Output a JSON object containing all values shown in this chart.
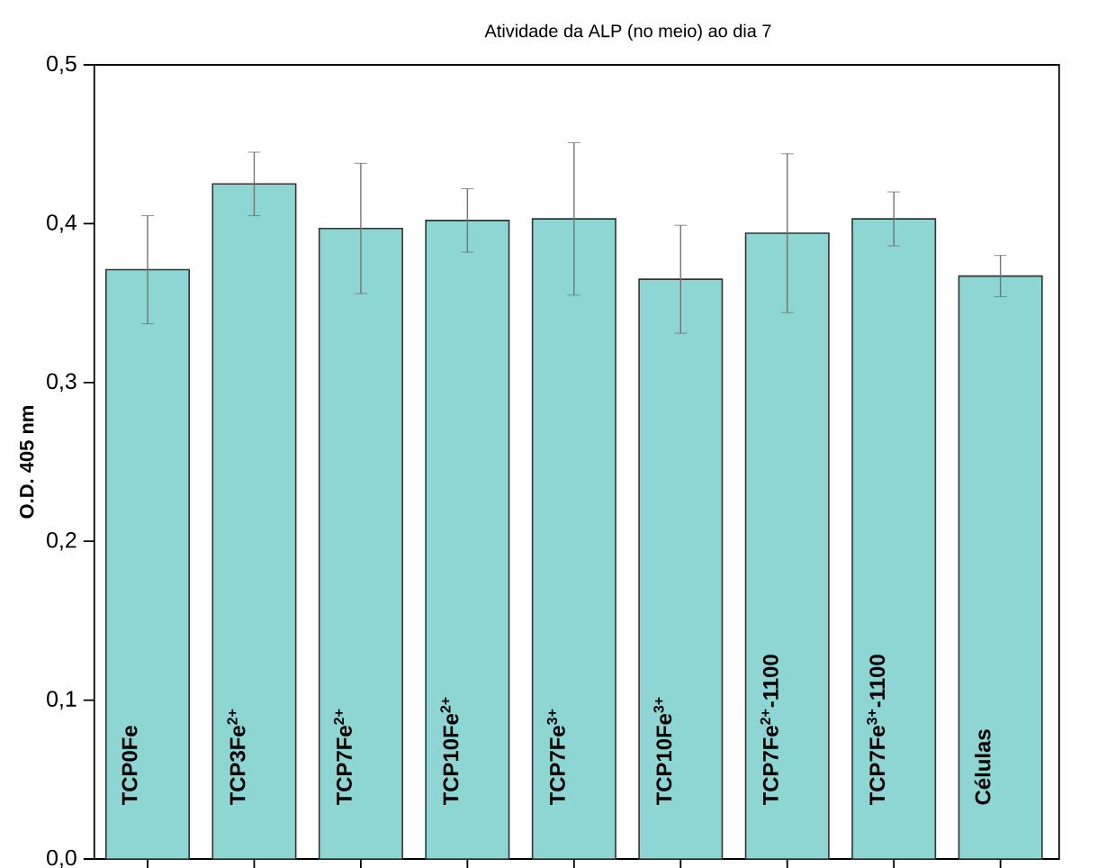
{
  "chart_data": {
    "type": "bar",
    "title": "Atividade da ALP (no meio) ao dia 7",
    "ylabel": "O.D. 405 nm",
    "categories": [
      "TCP0Fe",
      "TCP3Fe$^{2+}$",
      "TCP7Fe$^{2+}$",
      "TCP10Fe$^{2+}$",
      "TCP7Fe$^{3+}$",
      "TCP10Fe$^{3+}$",
      "TCP7Fe$^{2+}$-1100",
      "TCP7Fe$^{3+}$-1100",
      "Células"
    ],
    "values": [
      0.371,
      0.425,
      0.397,
      0.402,
      0.403,
      0.365,
      0.394,
      0.403,
      0.367
    ],
    "errors": [
      0.034,
      0.02,
      0.041,
      0.02,
      0.048,
      0.034,
      0.05,
      0.017,
      0.013
    ],
    "color": "#8dd6d3",
    "ylim": [
      0,
      0.5
    ],
    "yticks": [
      {
        "value": 0,
        "label": "0,0"
      },
      {
        "value": 0.1,
        "label": "0,1"
      },
      {
        "value": 0.2,
        "label": "0,2"
      },
      {
        "value": 0.3,
        "label": "0,3"
      },
      {
        "value": 0.4,
        "label": "0,4"
      },
      {
        "value": 0.5,
        "label": "0,5"
      }
    ],
    "grid": false
  }
}
